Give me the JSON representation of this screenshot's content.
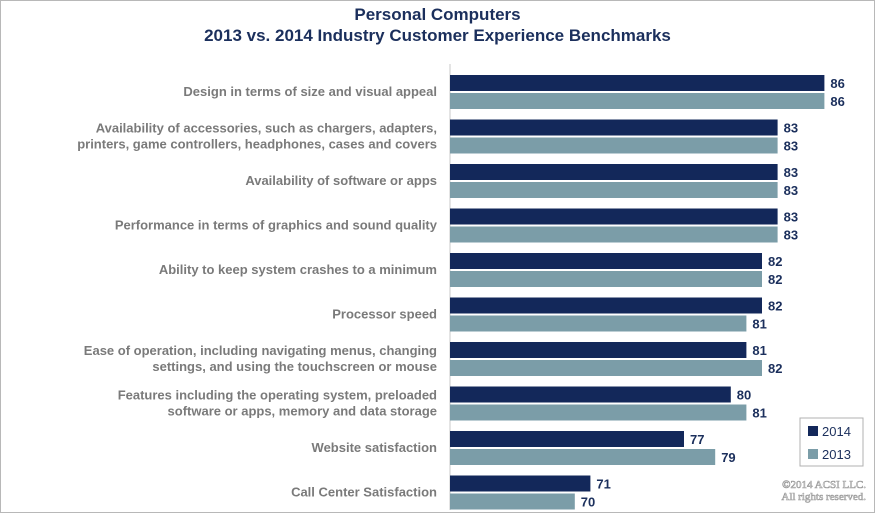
{
  "chart_data": {
    "type": "bar",
    "orientation": "horizontal",
    "title": "Personal Computers",
    "subtitle": "2013 vs. 2014 Industry Customer Experience Benchmarks",
    "categories": [
      "Design in terms of size and visual appeal",
      "Availability of accessories, such as chargers, adapters, printers, game controllers, headphones, cases and covers",
      "Availability of software or apps",
      "Performance in terms of graphics and sound quality",
      "Ability to keep system crashes to a minimum",
      "Processor speed",
      "Ease of operation, including navigating menus, changing settings, and using the touchscreen or mouse",
      "Features including the operating system, preloaded software or apps, memory and data storage",
      "Website satisfaction",
      "Call Center Satisfaction"
    ],
    "category_lines": [
      [
        "Design in terms of size and visual appeal"
      ],
      [
        "Availability of accessories, such as chargers, adapters,",
        "printers, game controllers, headphones, cases and covers"
      ],
      [
        "Availability of software or apps"
      ],
      [
        "Performance in terms of graphics and sound quality"
      ],
      [
        "Ability to keep system crashes to a minimum"
      ],
      [
        "Processor speed"
      ],
      [
        "Ease of operation, including navigating menus, changing",
        "settings, and using the touchscreen or mouse"
      ],
      [
        "Features including the operating system, preloaded",
        "software or apps, memory and data storage"
      ],
      [
        "Website satisfaction"
      ],
      [
        "Call Center Satisfaction"
      ]
    ],
    "series": [
      {
        "name": "2014",
        "color": "#13285a",
        "values": [
          86,
          83,
          83,
          83,
          82,
          82,
          81,
          80,
          77,
          71
        ]
      },
      {
        "name": "2013",
        "color": "#7b9da8",
        "values": [
          86,
          83,
          83,
          83,
          82,
          81,
          82,
          81,
          79,
          70
        ]
      }
    ],
    "xlim": [
      62,
      88
    ],
    "legend_position": "bottom-right",
    "grid": false,
    "watermark": [
      "©2014 ACSI LLC.",
      "All rights reserved."
    ]
  }
}
